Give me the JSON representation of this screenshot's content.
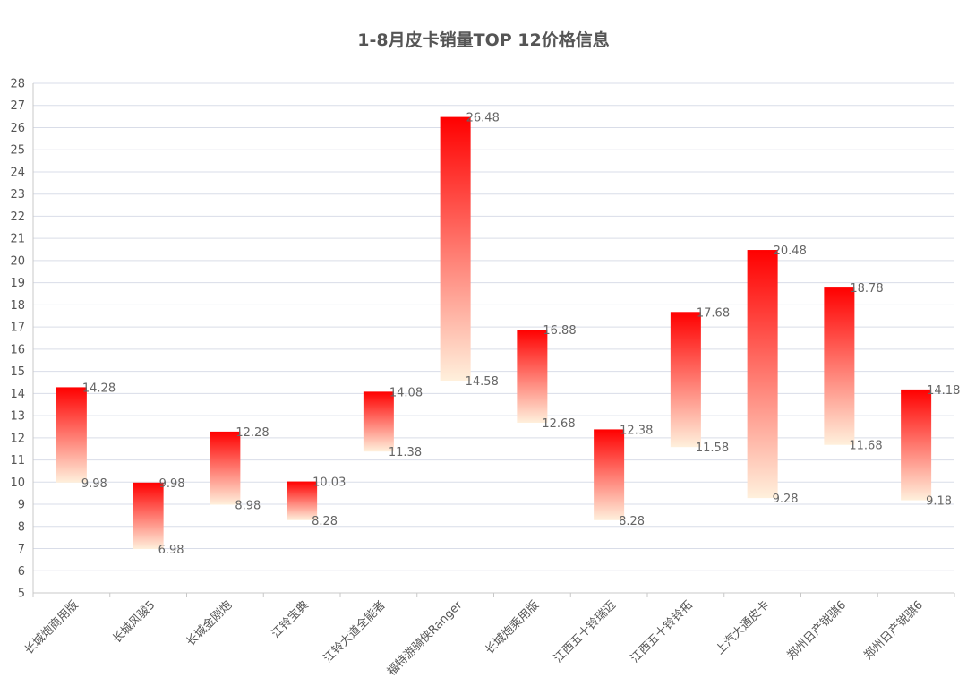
{
  "chart_data": {
    "type": "bar",
    "subtype": "floating-range",
    "title": "1-8月皮卡销量TOP 12价格信息",
    "xlabel": "",
    "ylabel": "",
    "ylim": [
      5,
      28
    ],
    "ytick_step": 1,
    "grid": true,
    "legend": "none",
    "categories": [
      "长城炮商用版",
      "长城风骏5",
      "长城金刚炮",
      "江铃宝典",
      "江铃大道全能者",
      "福特游骑侠Ranger",
      "长城炮乘用版",
      "江西五十铃瑞迈",
      "江西五十铃铃拓",
      "上汽大通皮卡",
      "郑州日产锐骐6",
      "郑州日产锐骐6"
    ],
    "series": [
      {
        "low": [
          9.98,
          6.98,
          8.98,
          8.28,
          11.38,
          14.58,
          12.68,
          8.28,
          11.58,
          9.28,
          11.68,
          9.18
        ],
        "high": [
          14.28,
          9.98,
          12.28,
          10.03,
          14.08,
          26.48,
          16.88,
          12.38,
          17.68,
          20.48,
          18.78,
          14.18
        ]
      }
    ],
    "low_labels": [
      "9.98",
      "6.98",
      "8.98",
      "8.28",
      "11.38",
      "14.58",
      "12.68",
      "8.28",
      "11.58",
      "9.28",
      "11.68",
      "9.18"
    ],
    "high_labels": [
      "14.28",
      "9.98",
      "12.28",
      "10.03",
      "14.08",
      "26.48",
      "16.88",
      "12.38",
      "17.68",
      "20.48",
      "18.78",
      "14.18"
    ],
    "colors": {
      "top": "#ff0000",
      "bottom": "#fff0dc",
      "grid": "#d9dde8",
      "axis": "#c8c8c8",
      "text": "#555555"
    }
  }
}
